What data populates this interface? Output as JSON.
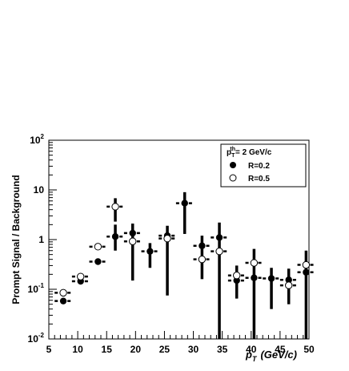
{
  "chart_data": {
    "type": "scatter",
    "xlabel": "p_T (GeV/c)",
    "xlabel_main": "p",
    "xlabel_sub": "T",
    "xlabel_unit": "(GeV/c)",
    "ylabel": "Prompt Signal / Background",
    "xlim": [
      5,
      50
    ],
    "ylim": [
      0.01,
      100
    ],
    "yscale": "log",
    "x_ticks": [
      5,
      10,
      15,
      20,
      25,
      30,
      35,
      40,
      45,
      50
    ],
    "y_ticks": [
      {
        "value": 0.01,
        "base": "10",
        "exp": "-2"
      },
      {
        "value": 0.1,
        "base": "10",
        "exp": "-1"
      },
      {
        "value": 1,
        "base": "1",
        "exp": ""
      },
      {
        "value": 10,
        "base": "10",
        "exp": ""
      },
      {
        "value": 100,
        "base": "10",
        "exp": "2"
      }
    ],
    "legend": {
      "title_main": "p",
      "title_sub": "T",
      "title_sup": "th",
      "title_rest": "= 2 GeV/c",
      "entries": [
        "R=0.2",
        "R=0.5"
      ],
      "position": "top-right"
    },
    "series": [
      {
        "name": "R=0.2",
        "marker": "filled-circle",
        "points": [
          {
            "x": 7.5,
            "y": 0.058,
            "xerr": 1.5,
            "ylo": 0.058,
            "yhi": 0.058
          },
          {
            "x": 10.5,
            "y": 0.145,
            "xerr": 1.5,
            "ylo": 0.145,
            "yhi": 0.145
          },
          {
            "x": 13.5,
            "y": 0.36,
            "xerr": 1.5,
            "ylo": 0.36,
            "yhi": 0.36
          },
          {
            "x": 16.5,
            "y": 1.15,
            "xerr": 1.5,
            "ylo": 0.6,
            "yhi": 2.0
          },
          {
            "x": 19.5,
            "y": 1.35,
            "xerr": 1.5,
            "ylo": 0.15,
            "yhi": 2.1
          },
          {
            "x": 22.5,
            "y": 0.58,
            "xerr": 1.5,
            "ylo": 0.27,
            "yhi": 0.85
          },
          {
            "x": 25.5,
            "y": 1.2,
            "xerr": 1.5,
            "ylo": 0.075,
            "yhi": 1.9
          },
          {
            "x": 28.5,
            "y": 5.4,
            "xerr": 1.5,
            "ylo": 1.3,
            "yhi": 9.0
          },
          {
            "x": 31.5,
            "y": 0.75,
            "xerr": 1.5,
            "ylo": 0.16,
            "yhi": 1.2
          },
          {
            "x": 34.5,
            "y": 1.1,
            "xerr": 1.5,
            "ylo": 0.01,
            "yhi": 2.2
          },
          {
            "x": 37.5,
            "y": 0.15,
            "xerr": 1.5,
            "ylo": 0.065,
            "yhi": 0.3
          },
          {
            "x": 40.5,
            "y": 0.17,
            "xerr": 1.5,
            "ylo": 0.01,
            "yhi": 0.65
          },
          {
            "x": 43.5,
            "y": 0.165,
            "xerr": 1.5,
            "ylo": 0.04,
            "yhi": 0.27
          },
          {
            "x": 46.5,
            "y": 0.155,
            "xerr": 1.5,
            "ylo": 0.05,
            "yhi": 0.26
          },
          {
            "x": 49.5,
            "y": 0.22,
            "xerr": 1.5,
            "ylo": 0.01,
            "yhi": 0.6
          }
        ]
      },
      {
        "name": "R=0.5",
        "marker": "open-circle",
        "points": [
          {
            "x": 7.5,
            "y": 0.085,
            "xerr": 1.5,
            "ylo": 0.085,
            "yhi": 0.085
          },
          {
            "x": 10.5,
            "y": 0.18,
            "xerr": 1.5,
            "ylo": 0.18,
            "yhi": 0.18
          },
          {
            "x": 13.5,
            "y": 0.72,
            "xerr": 1.5,
            "ylo": 0.72,
            "yhi": 0.72
          },
          {
            "x": 16.5,
            "y": 4.6,
            "xerr": 1.5,
            "ylo": 2.3,
            "yhi": 6.8
          },
          {
            "x": 19.5,
            "y": 0.92,
            "xerr": 1.5,
            "ylo": 0.92,
            "yhi": 0.92
          },
          {
            "x": 25.5,
            "y": 1.05,
            "xerr": 1.5,
            "ylo": 1.05,
            "yhi": 1.05
          },
          {
            "x": 31.5,
            "y": 0.4,
            "xerr": 1.5,
            "ylo": 0.4,
            "yhi": 0.4
          },
          {
            "x": 34.5,
            "y": 0.58,
            "xerr": 1.5,
            "ylo": 0.58,
            "yhi": 0.58
          },
          {
            "x": 37.5,
            "y": 0.19,
            "xerr": 1.5,
            "ylo": 0.19,
            "yhi": 0.19
          },
          {
            "x": 40.5,
            "y": 0.34,
            "xerr": 1.5,
            "ylo": 0.34,
            "yhi": 0.34
          },
          {
            "x": 46.5,
            "y": 0.12,
            "xerr": 1.5,
            "ylo": 0.12,
            "yhi": 0.12
          },
          {
            "x": 49.5,
            "y": 0.31,
            "xerr": 1.5,
            "ylo": 0.31,
            "yhi": 0.31
          }
        ]
      }
    ]
  }
}
